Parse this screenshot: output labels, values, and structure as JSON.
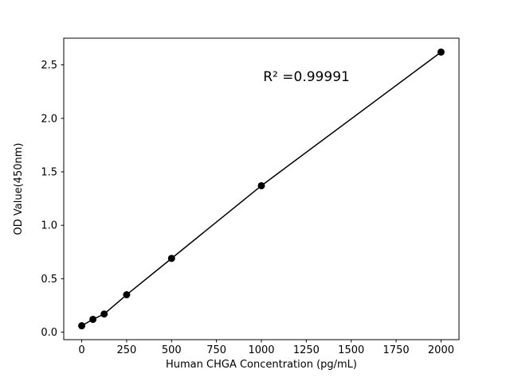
{
  "figure": {
    "background": "#ffffff",
    "foreground": "#000000"
  },
  "chart_data": {
    "type": "scatter",
    "x": [
      0,
      62.5,
      125,
      250,
      500,
      1000,
      2000
    ],
    "y": [
      0.06,
      0.12,
      0.17,
      0.35,
      0.69,
      1.37,
      2.62
    ],
    "connect_line": true,
    "marker_color": "#000000",
    "line_color": "#000000",
    "title": "",
    "xlabel": "Human CHGA Concentration (pg/mL)",
    "ylabel": "OD Value(450nm)",
    "xlim": [
      -100,
      2100
    ],
    "ylim": [
      -0.07,
      2.75
    ],
    "xticks": [
      0,
      250,
      500,
      750,
      1000,
      1250,
      1500,
      1750,
      2000
    ],
    "yticks": [
      0.0,
      0.5,
      1.0,
      1.5,
      2.0,
      2.5
    ],
    "grid": false,
    "legend": null,
    "annotation": {
      "text": "R² =0.99991",
      "x": 1010,
      "y": 2.35
    }
  }
}
